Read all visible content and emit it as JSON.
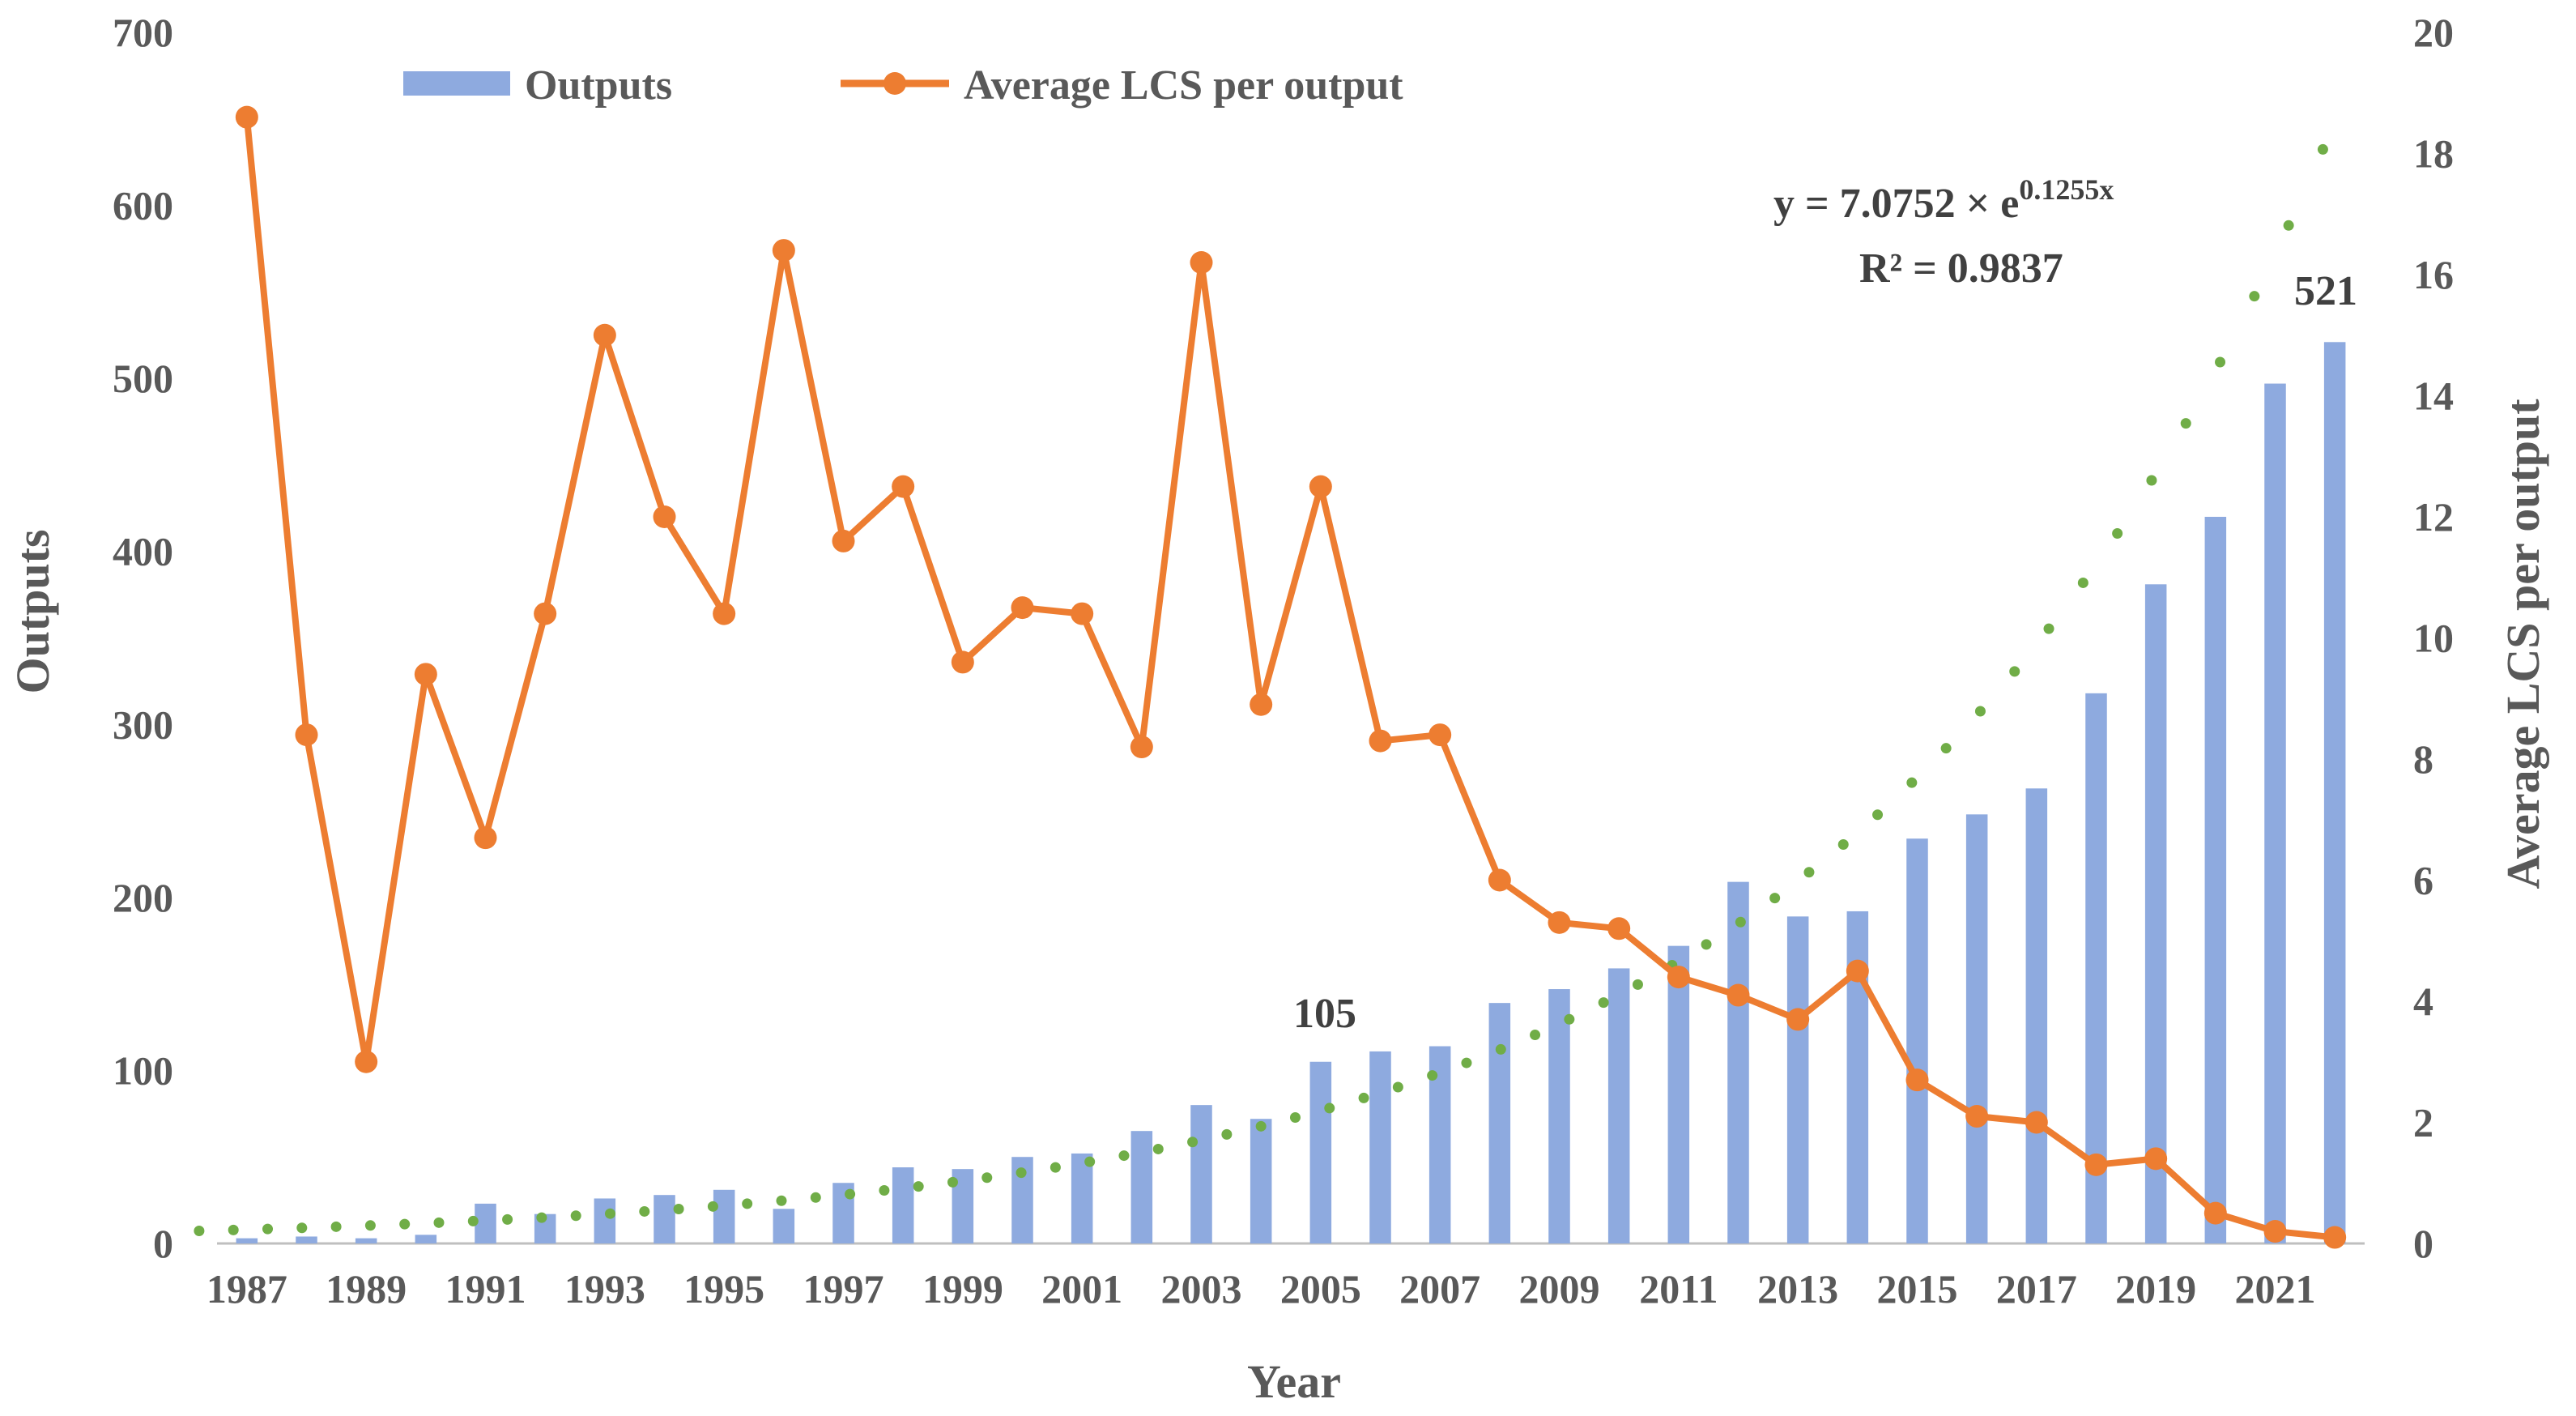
{
  "chart_data": {
    "type": "bar",
    "title": "",
    "xlabel": "Year",
    "ylabel": "Outputs",
    "y2label": "Average LCS per output",
    "ylim": [
      0,
      700
    ],
    "y2lim": [
      0,
      20
    ],
    "yticks": [
      "0",
      "100",
      "200",
      "300",
      "400",
      "500",
      "600",
      "700"
    ],
    "y2ticks": [
      "0",
      "2",
      "4",
      "6",
      "8",
      "10",
      "12",
      "14",
      "16",
      "18",
      "20"
    ],
    "categories": [
      "1987",
      "1988",
      "1989",
      "1990",
      "1991",
      "1992",
      "1993",
      "1994",
      "1995",
      "1996",
      "1997",
      "1998",
      "1999",
      "2000",
      "2001",
      "2002",
      "2003",
      "2004",
      "2005",
      "2006",
      "2007",
      "2008",
      "2009",
      "2010",
      "2011",
      "2012",
      "2013",
      "2014",
      "2015",
      "2016",
      "2017",
      "2018",
      "2019",
      "2020",
      "2021",
      "2022"
    ],
    "xtick_labels": [
      "1987",
      "1989",
      "1991",
      "1993",
      "1995",
      "1997",
      "1999",
      "2001",
      "2003",
      "2005",
      "2007",
      "2009",
      "2011",
      "2013",
      "2015",
      "2017",
      "2019",
      "2021"
    ],
    "series": [
      {
        "name": "Outputs",
        "type": "bar",
        "axis": "left",
        "color": "#8eaadf",
        "values": [
          3,
          4,
          3,
          5,
          23,
          17,
          26,
          28,
          31,
          20,
          35,
          44,
          43,
          50,
          52,
          65,
          80,
          72,
          105,
          111,
          114,
          139,
          147,
          159,
          172,
          209,
          189,
          192,
          234,
          248,
          263,
          318,
          381,
          420,
          497,
          521
        ]
      },
      {
        "name": "Average LCS per output",
        "type": "line",
        "axis": "right",
        "color": "#ed7d31",
        "values": [
          18.6,
          8.4,
          3.0,
          9.4,
          6.7,
          10.4,
          15.0,
          12.0,
          10.4,
          16.4,
          11.6,
          12.5,
          9.6,
          10.5,
          10.4,
          8.2,
          16.2,
          8.9,
          12.5,
          8.3,
          8.4,
          6.0,
          5.3,
          5.2,
          4.4,
          4.1,
          3.7,
          4.5,
          2.7,
          2.1,
          2.0,
          1.3,
          1.4,
          0.5,
          0.2,
          0.1
        ]
      }
    ],
    "trendline": {
      "type": "exponential",
      "color": "#70ad47",
      "a": 7.0752,
      "b": 0.1255,
      "x_start": 0.2,
      "x_end": 35.8
    },
    "annotations": {
      "equation_lhs": "y = 7.0752 × e",
      "equation_exp": "0.1255x",
      "r_squared": "R² = 0.9837",
      "label_2005": "105",
      "label_2022": "521"
    },
    "legend": {
      "position": "top-left",
      "items": [
        "Outputs",
        "Average LCS per output"
      ]
    }
  }
}
